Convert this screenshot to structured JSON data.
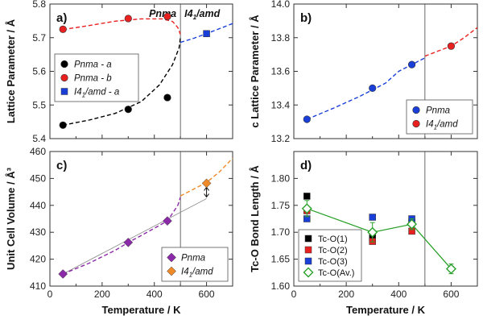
{
  "chart_data": [
    {
      "id": "a",
      "type": "scatter",
      "panel_label": "a)",
      "ylabel": "Lattice Parameter / Å",
      "xlabel": "",
      "xlim": [
        0,
        700
      ],
      "ylim": [
        5.4,
        5.8
      ],
      "xticks": [
        0,
        200,
        400,
        600
      ],
      "yticks": [
        5.4,
        5.5,
        5.6,
        5.7,
        5.8
      ],
      "show_xticklabels": false,
      "transition_x": 500,
      "phase_labels": [
        {
          "text": "Pnma"
        },
        {
          "text": "I41/amd"
        }
      ],
      "legend_position": "center-left",
      "series": [
        {
          "name": "Pnma - a",
          "color": "#000000",
          "marker": "circle",
          "x": [
            50,
            300,
            450
          ],
          "y": [
            5.44,
            5.487,
            5.522
          ]
        },
        {
          "name": "Pnma - b",
          "color": "#e82020",
          "marker": "circle",
          "x": [
            50,
            300,
            450
          ],
          "y": [
            5.725,
            5.757,
            5.763
          ]
        },
        {
          "name": "I41/amd - a",
          "color": "#1a3fd8",
          "marker": "square",
          "x": [
            600
          ],
          "y": [
            5.712
          ]
        }
      ],
      "fits": [
        {
          "color": "#000000",
          "points": [
            [
              50,
              5.44
            ],
            [
              150,
              5.455
            ],
            [
              250,
              5.475
            ],
            [
              350,
              5.51
            ],
            [
              420,
              5.56
            ],
            [
              470,
              5.62
            ],
            [
              495,
              5.67
            ],
            [
              500,
              5.7
            ]
          ]
        },
        {
          "color": "#e82020",
          "points": [
            [
              50,
              5.724
            ],
            [
              150,
              5.736
            ],
            [
              250,
              5.749
            ],
            [
              350,
              5.756
            ],
            [
              430,
              5.756
            ],
            [
              470,
              5.748
            ],
            [
              490,
              5.73
            ],
            [
              500,
              5.71
            ]
          ]
        },
        {
          "color": "#1a3fd8",
          "points": [
            [
              500,
              5.686
            ],
            [
              550,
              5.698
            ],
            [
              600,
              5.712
            ],
            [
              650,
              5.727
            ],
            [
              700,
              5.742
            ]
          ]
        }
      ]
    },
    {
      "id": "b",
      "type": "scatter",
      "panel_label": "b)",
      "ylabel": "c Lattice Parameter / Å",
      "xlabel": "",
      "xlim": [
        0,
        700
      ],
      "ylim": [
        13.2,
        14.0
      ],
      "xticks": [
        0,
        200,
        400,
        600
      ],
      "yticks": [
        13.2,
        13.4,
        13.6,
        13.8,
        14.0
      ],
      "show_xticklabels": false,
      "transition_x": 500,
      "phase_labels": [],
      "legend_position": "bottom-right",
      "series": [
        {
          "name": "Pnma",
          "color": "#1a3fd8",
          "marker": "circle",
          "x": [
            50,
            300,
            450
          ],
          "y": [
            13.315,
            13.5,
            13.64
          ]
        },
        {
          "name": "I41/amd",
          "color": "#e82020",
          "marker": "circle",
          "x": [
            600
          ],
          "y": [
            13.75
          ]
        }
      ],
      "fits": [
        {
          "color": "#1a3fd8",
          "points": [
            [
              50,
              13.315
            ],
            [
              150,
              13.38
            ],
            [
              250,
              13.45
            ],
            [
              300,
              13.49
            ],
            [
              350,
              13.53
            ],
            [
              400,
              13.6
            ],
            [
              450,
              13.64
            ],
            [
              500,
              13.68
            ]
          ]
        },
        {
          "color": "#e82020",
          "points": [
            [
              500,
              13.69
            ],
            [
              550,
              13.72
            ],
            [
              600,
              13.75
            ],
            [
              650,
              13.8
            ],
            [
              700,
              13.86
            ]
          ]
        }
      ]
    },
    {
      "id": "c",
      "type": "scatter",
      "panel_label": "c)",
      "ylabel": "Unit Cell Volume / Å³",
      "xlabel": "Temperature / K",
      "xlim": [
        0,
        700
      ],
      "ylim": [
        410,
        460
      ],
      "xticks": [
        0,
        200,
        400,
        600
      ],
      "yticks": [
        410,
        420,
        430,
        440,
        450,
        460
      ],
      "show_xticklabels": true,
      "transition_x": 500,
      "phase_labels": [],
      "legend_position": "bottom-right",
      "series": [
        {
          "name": "Pnma",
          "color": "#8b2aa8",
          "marker": "diamond",
          "x": [
            50,
            300,
            450
          ],
          "y": [
            414.5,
            426.2,
            434.2
          ]
        },
        {
          "name": "I41/amd",
          "color": "#f08a28",
          "marker": "diamond",
          "x": [
            600
          ],
          "y": [
            448.2
          ]
        }
      ],
      "fits": [
        {
          "color": "#8b2aa8",
          "points": [
            [
              50,
              414.5
            ],
            [
              150,
              418.5
            ],
            [
              250,
              423.3
            ],
            [
              300,
              426.2
            ],
            [
              350,
              428.8
            ],
            [
              400,
              431.5
            ],
            [
              450,
              434.2
            ],
            [
              490,
              440
            ],
            [
              500,
              443
            ]
          ]
        },
        {
          "color": "#f08a28",
          "points": [
            [
              500,
              443.5
            ],
            [
              550,
              446
            ],
            [
              600,
              448.5
            ],
            [
              650,
              452.5
            ],
            [
              700,
              457.5
            ]
          ]
        }
      ],
      "trend_line": {
        "color": "#888888",
        "points": [
          [
            50,
            414.5
          ],
          [
            600,
            442.5
          ]
        ]
      },
      "arrow": {
        "x": 600,
        "y1": 448.2,
        "y2": 442.5
      }
    },
    {
      "id": "d",
      "type": "scatter",
      "panel_label": "d)",
      "ylabel": "Tc-O Bond Length / Å",
      "xlabel": "Temperature / K",
      "xlim": [
        0,
        700
      ],
      "ylim": [
        1.6,
        1.85
      ],
      "xticks": [
        0,
        200,
        400,
        600
      ],
      "yticks": [
        1.6,
        1.65,
        1.7,
        1.75,
        1.8
      ],
      "show_xticklabels": true,
      "transition_x": 500,
      "phase_labels": [],
      "legend_position": "bottom-left",
      "series": [
        {
          "name": "Tc-O(1)",
          "color": "#000000",
          "marker": "square",
          "x": [
            50,
            300,
            450
          ],
          "y": [
            1.767,
            1.69,
            1.719
          ]
        },
        {
          "name": "Tc-O(2)",
          "color": "#e82020",
          "marker": "square",
          "x": [
            50,
            300,
            450
          ],
          "y": [
            1.74,
            1.683,
            1.702
          ]
        },
        {
          "name": "Tc-O(3)",
          "color": "#1a3fd8",
          "marker": "square",
          "x": [
            50,
            300,
            450
          ],
          "y": [
            1.725,
            1.728,
            1.725
          ]
        },
        {
          "name": "Tc-O(Av.)",
          "color": "#2aa02a",
          "marker": "open-diamond",
          "x": [
            50,
            300,
            450,
            600
          ],
          "y": [
            1.744,
            1.7,
            1.715,
            1.632
          ],
          "yerr": [
            0.015,
            0.018,
            0.01,
            0.009
          ],
          "connected": true
        }
      ],
      "fits": []
    }
  ]
}
